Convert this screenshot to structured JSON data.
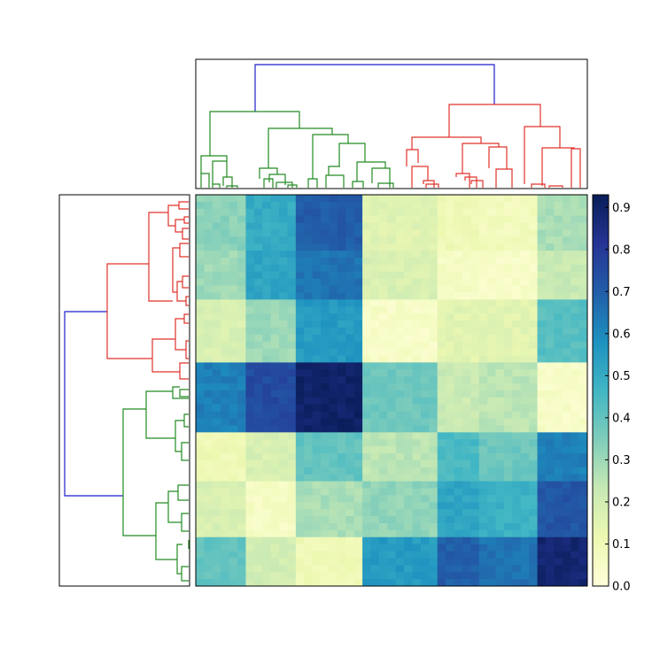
{
  "chart_data": {
    "type": "heatmap",
    "title": "",
    "xlabel": "",
    "ylabel": "",
    "dendrograms": {
      "top": "column clustering dendrogram (green cluster left, red cluster right, blue root link)",
      "left": "row clustering dendrogram (red cluster top, green cluster bottom, blue root link)"
    },
    "cluster_colors": {
      "root": "#1f1fcc",
      "cluster_a": "#238b23",
      "cluster_b": "#e0332b"
    },
    "colorscale": {
      "name": "YlGnBu",
      "range": [
        0,
        0.93
      ],
      "stops": [
        "#ffffd9",
        "#edf8b1",
        "#c7e9b4",
        "#7fcdbb",
        "#41b6c4",
        "#1d91c0",
        "#225ea8",
        "#253494",
        "#081d58"
      ]
    },
    "colorbar": {
      "tick_values": [
        0.0,
        0.1,
        0.2,
        0.3,
        0.4,
        0.5,
        0.6,
        0.7,
        0.8,
        0.9
      ],
      "tick_labels": [
        "0.0",
        "0.1",
        "0.2",
        "0.3",
        "0.4",
        "0.5",
        "0.6",
        "0.7",
        "0.8",
        "0.9"
      ]
    },
    "block_matrix": {
      "note": "approximate cell values by row-group x column-group (rows top->bottom, cols left->right)",
      "col_group_sizes": [
        6,
        6,
        8,
        9,
        5,
        7,
        6
      ],
      "row_group_sizes": [
        8,
        7,
        9,
        10,
        7,
        8,
        7
      ],
      "values": [
        [
          0.33,
          0.5,
          0.7,
          0.16,
          0.1,
          0.08,
          0.28
        ],
        [
          0.3,
          0.52,
          0.65,
          0.18,
          0.06,
          0.05,
          0.22
        ],
        [
          0.18,
          0.3,
          0.55,
          0.05,
          0.15,
          0.15,
          0.42
        ],
        [
          0.62,
          0.75,
          0.9,
          0.38,
          0.22,
          0.25,
          0.05
        ],
        [
          0.1,
          0.18,
          0.4,
          0.25,
          0.45,
          0.38,
          0.62
        ],
        [
          0.18,
          0.06,
          0.28,
          0.32,
          0.52,
          0.48,
          0.72
        ],
        [
          0.4,
          0.2,
          0.1,
          0.55,
          0.7,
          0.65,
          0.88
        ]
      ]
    }
  }
}
